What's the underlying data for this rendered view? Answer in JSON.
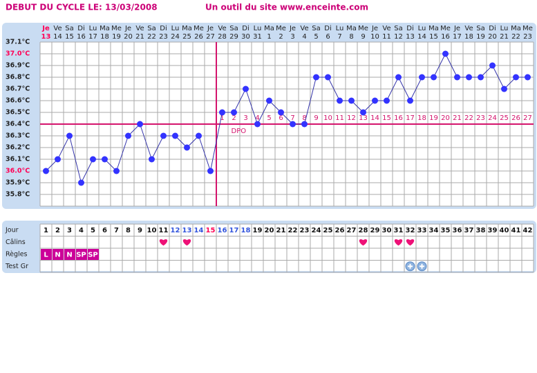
{
  "chart_data": {
    "type": "line",
    "title": "DEBUT DU CYCLE LE: 13/03/2008",
    "subtitle": "Un outil du site www.enceinte.com",
    "weekdays": [
      "Je",
      "Ve",
      "Sa",
      "Di",
      "Lu",
      "Ma",
      "Me",
      "Je",
      "Ve",
      "Sa",
      "Di",
      "Lu",
      "Ma",
      "Me",
      "Je",
      "Ve",
      "Sa",
      "Di",
      "Lu",
      "Ma",
      "Me",
      "Je",
      "Ve",
      "Sa",
      "Di",
      "Lu",
      "Ma",
      "Me",
      "Je",
      "Ve",
      "Sa",
      "Di",
      "Lu",
      "Ma",
      "Me",
      "Je",
      "Ve",
      "Sa",
      "Di",
      "Lu",
      "Ma",
      "Me"
    ],
    "dates": [
      "13",
      "14",
      "15",
      "16",
      "17",
      "18",
      "19",
      "20",
      "21",
      "22",
      "23",
      "24",
      "25",
      "26",
      "27",
      "28",
      "29",
      "30",
      "31",
      "1",
      "2",
      "3",
      "4",
      "5",
      "6",
      "7",
      "8",
      "9",
      "10",
      "11",
      "12",
      "13",
      "14",
      "15",
      "16",
      "17",
      "18",
      "19",
      "20",
      "21",
      "22",
      "23"
    ],
    "values": [
      36.0,
      36.1,
      36.3,
      35.9,
      36.1,
      36.1,
      36.0,
      36.3,
      36.4,
      36.1,
      36.3,
      36.3,
      36.2,
      36.3,
      36.0,
      36.5,
      36.5,
      36.7,
      36.4,
      36.6,
      36.5,
      36.4,
      36.4,
      36.8,
      36.8,
      36.6,
      36.6,
      36.5,
      36.6,
      36.6,
      36.8,
      36.6,
      36.8,
      36.8,
      37.0,
      36.8,
      36.8,
      36.8,
      36.9,
      36.7,
      36.8,
      36.8
    ],
    "color": "#3333ff",
    "ylim": [
      35.7,
      37.1
    ],
    "yticks": [
      {
        "value": 35.8,
        "label": "35.8°C"
      },
      {
        "value": 35.9,
        "label": "35.9°C"
      },
      {
        "value": 36.0,
        "label": "36.0°C"
      },
      {
        "value": 36.1,
        "label": "36.1°C"
      },
      {
        "value": 36.2,
        "label": "36.2°C"
      },
      {
        "value": 36.3,
        "label": "36.3°C"
      },
      {
        "value": 36.4,
        "label": "36.4°C"
      },
      {
        "value": 36.5,
        "label": "36.5°C"
      },
      {
        "value": 36.6,
        "label": "36.6°C"
      },
      {
        "value": 36.7,
        "label": "36.7°C"
      },
      {
        "value": 36.8,
        "label": "36.8°C"
      },
      {
        "value": 36.9,
        "label": "36.9°C"
      },
      {
        "value": 37.0,
        "label": "37.0°C"
      },
      {
        "value": 37.1,
        "label": "37.1°C"
      }
    ],
    "grid": true,
    "coverline": 36.4,
    "dpo_label": "DPO",
    "dpo": [
      null,
      null,
      null,
      null,
      null,
      null,
      null,
      null,
      null,
      null,
      null,
      null,
      null,
      null,
      null,
      1,
      2,
      3,
      4,
      5,
      6,
      7,
      8,
      9,
      10,
      11,
      12,
      13,
      14,
      15,
      16,
      17,
      18,
      19,
      20,
      21,
      22,
      23,
      24,
      25,
      26,
      27
    ],
    "table": {
      "row_labels": [
        "Jour",
        "Câlins",
        "Règles",
        "Test Gr"
      ],
      "cycle_days": [
        1,
        2,
        3,
        4,
        5,
        6,
        7,
        8,
        9,
        10,
        11,
        12,
        13,
        14,
        15,
        16,
        17,
        18,
        19,
        20,
        21,
        22,
        23,
        24,
        25,
        26,
        27,
        28,
        29,
        30,
        31,
        32,
        33,
        34,
        35,
        36,
        37,
        38,
        39,
        40,
        41,
        42
      ],
      "blue_days": [
        12,
        13,
        14,
        16,
        17,
        18
      ],
      "pink_days": [
        15
      ],
      "calins_days": [
        11,
        13,
        28,
        31,
        32
      ],
      "regles": [
        "L",
        "N",
        "N",
        "SP",
        "SP"
      ],
      "test_positive_days": [
        32,
        33
      ]
    }
  }
}
